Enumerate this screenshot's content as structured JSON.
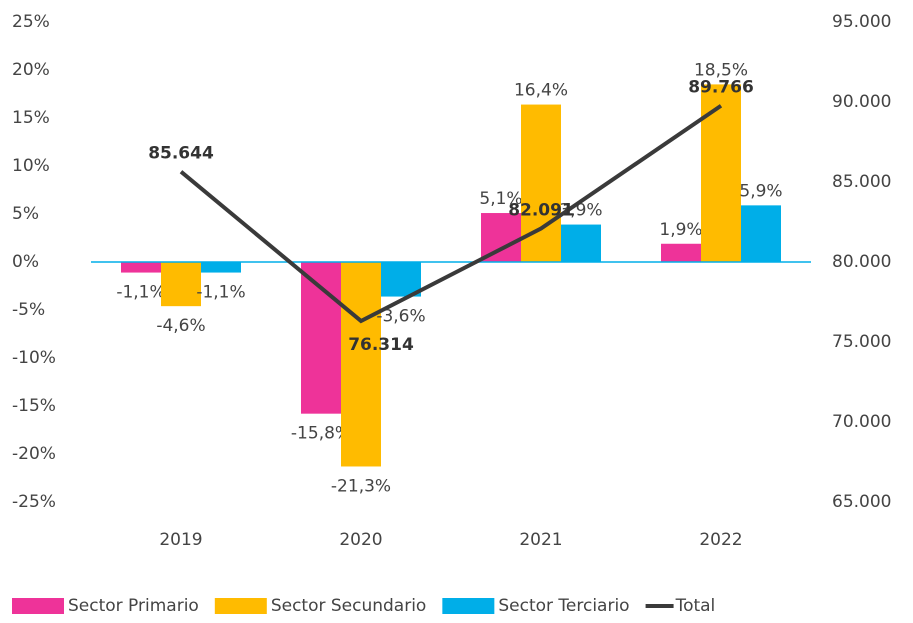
{
  "chart_data": {
    "type": "bar-line",
    "categories": [
      "2019",
      "2020",
      "2021",
      "2022"
    ],
    "series": [
      {
        "name": "Sector Primario",
        "color": "#ee3399",
        "values": [
          -1.1,
          -15.8,
          5.1,
          1.9
        ],
        "value_labels": [
          "-1,1%",
          "-15,8%",
          "5,1%",
          "1,9%"
        ]
      },
      {
        "name": "Sector Secundario",
        "color": "#ffbb00",
        "values": [
          -4.6,
          -21.3,
          16.4,
          18.5
        ],
        "value_labels": [
          "-4,6%",
          "-21,3%",
          "16,4%",
          "18,5%"
        ]
      },
      {
        "name": "Sector Terciario",
        "color": "#00aee8",
        "values": [
          -1.1,
          -3.6,
          3.9,
          5.9
        ],
        "value_labels": [
          "-1,1%",
          "-3,6%",
          "3,9%",
          "5,9%"
        ]
      },
      {
        "name": "Total",
        "color": "#3a3a3a",
        "axis": "y2",
        "type": "line",
        "values": [
          85644,
          76314,
          82091,
          89766
        ],
        "value_labels": [
          "85.644",
          "76.314",
          "82.091",
          "89.766"
        ]
      }
    ],
    "ylim": [
      -25,
      25
    ],
    "yticks": [
      {
        "value": -25,
        "label": "-25%"
      },
      {
        "value": -20,
        "label": "-20%"
      },
      {
        "value": -15,
        "label": "-15%"
      },
      {
        "value": -10,
        "label": "-10%"
      },
      {
        "value": -5,
        "label": "-5%"
      },
      {
        "value": 0,
        "label": "0%"
      },
      {
        "value": 5,
        "label": "5%"
      },
      {
        "value": 10,
        "label": "10%"
      },
      {
        "value": 15,
        "label": "15%"
      },
      {
        "value": 20,
        "label": "20%"
      },
      {
        "value": 25,
        "label": "25%"
      }
    ],
    "y2lim": [
      65000,
      95000
    ],
    "y2ticks": [
      {
        "value": 65000,
        "label": "65.000"
      },
      {
        "value": 70000,
        "label": "70.000"
      },
      {
        "value": 75000,
        "label": "75.000"
      },
      {
        "value": 80000,
        "label": "80.000"
      },
      {
        "value": 85000,
        "label": "85.000"
      },
      {
        "value": 90000,
        "label": "90.000"
      },
      {
        "value": 95000,
        "label": "95.000"
      }
    ],
    "legend": "bottom"
  }
}
